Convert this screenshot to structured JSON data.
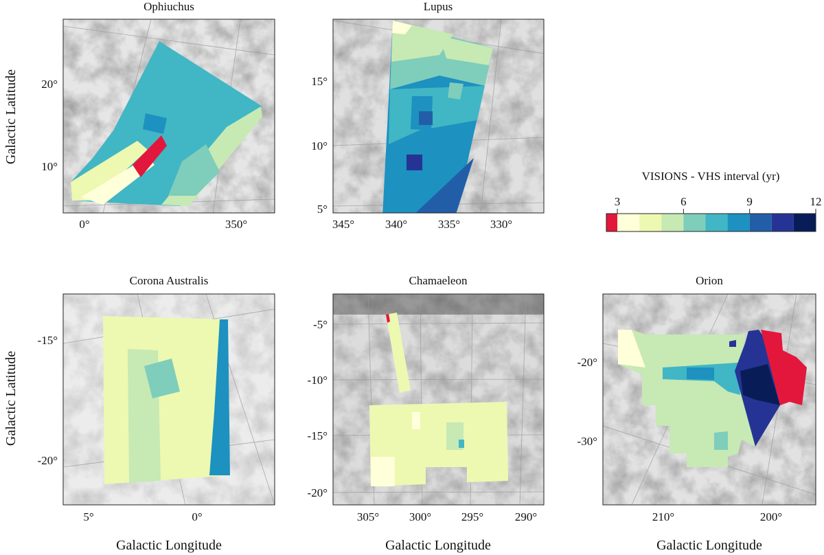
{
  "chart_data": {
    "type": "heatmap",
    "title": "",
    "description_units": "VISIONS - VHS interval (yr)",
    "panels": [
      {
        "title": "Ophiuchus",
        "xlabel": "",
        "ylabel": "Galactic Latitude",
        "xticks": [
          "0°",
          "350°"
        ],
        "yticks": [
          "20°",
          "10°"
        ]
      },
      {
        "title": "Lupus",
        "xlabel": "",
        "ylabel": "",
        "xticks": [
          "345°",
          "340°",
          "335°",
          "330°"
        ],
        "yticks": [
          "15°",
          "10°",
          "5°"
        ]
      },
      {
        "title": "Corona Australis",
        "xlabel": "Galactic Longitude",
        "ylabel": "Galactic Latitude",
        "xticks": [
          "5°",
          "0°"
        ],
        "yticks": [
          "-15°",
          "-20°"
        ]
      },
      {
        "title": "Chamaeleon",
        "xlabel": "Galactic Longitude",
        "ylabel": "",
        "xticks": [
          "305°",
          "300°",
          "295°",
          "290°"
        ],
        "yticks": [
          "-5°",
          "-10°",
          "-15°",
          "-20°"
        ]
      },
      {
        "title": "Orion",
        "xlabel": "Galactic Longitude",
        "ylabel": "",
        "xticks": [
          "210°",
          "200°"
        ],
        "yticks": [
          "-20°",
          "-30°"
        ]
      }
    ],
    "colorbar": {
      "label": "VISIONS - VHS interval (yr)",
      "ticks": [
        "3",
        "6",
        "9",
        "12"
      ],
      "range": [
        2.5,
        12
      ],
      "bins": [
        2.5,
        3,
        4,
        5,
        6,
        7,
        8,
        9,
        10,
        11,
        12
      ],
      "colors": [
        "#e3173c",
        "#ffffd9",
        "#edf8b1",
        "#c7e9b4",
        "#7fcdbb",
        "#41b6c4",
        "#1d91c0",
        "#225ea8",
        "#253494",
        "#081d58"
      ]
    }
  }
}
